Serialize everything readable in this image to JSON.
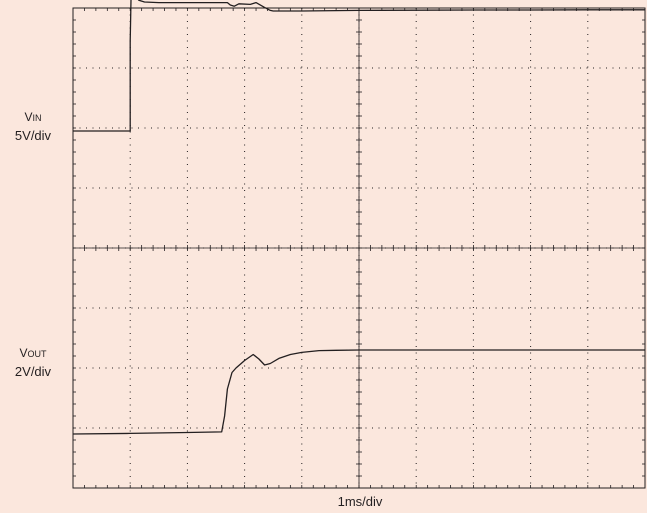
{
  "chart_data": {
    "type": "line",
    "chart_kind": "oscilloscope capture",
    "grid": "10 x 8 divisions, dotted, with minor tick marks on the center axes",
    "x_axis_label": "1ms/div",
    "x_unit": "ms",
    "xlim": [
      0,
      10
    ],
    "channels": [
      {
        "name_prefix": "V",
        "name_subscript": "IN",
        "scale_label": "5V/div",
        "units": "V",
        "zero_division": 2.05,
        "volts_per_division": 5,
        "x": [
          0,
          1.0,
          1.0,
          1.03,
          1.06,
          1.1,
          1.15,
          1.25,
          1.5,
          2,
          2.5,
          2.7,
          2.75,
          2.82,
          2.9,
          3.1,
          3.2,
          3.35,
          3.45,
          3.5,
          3.6,
          4,
          5,
          6,
          7,
          8,
          9,
          10
        ],
        "y": [
          0,
          0,
          7.5,
          14.8,
          12.5,
          11.2,
          10.9,
          10.75,
          10.7,
          10.7,
          10.7,
          10.7,
          10.5,
          10.4,
          10.6,
          10.55,
          10.7,
          10.3,
          10.05,
          10.0,
          10.0,
          10.0,
          10.05,
          10.07,
          10.08,
          10.08,
          10.1,
          10.1
        ]
      },
      {
        "name_prefix": "V",
        "name_subscript": "OUT",
        "scale_label": "2V/div",
        "units": "V",
        "zero_division": 7.1,
        "volts_per_division": 2,
        "x": [
          0,
          1,
          2,
          2.6,
          2.65,
          2.7,
          2.78,
          2.85,
          3.0,
          3.15,
          3.25,
          3.35,
          3.45,
          3.6,
          3.8,
          4.0,
          4.3,
          4.6,
          5,
          6,
          7,
          8,
          9,
          10
        ],
        "y": [
          0,
          0.02,
          0.05,
          0.07,
          0.6,
          1.5,
          2.05,
          2.2,
          2.45,
          2.65,
          2.5,
          2.3,
          2.35,
          2.52,
          2.65,
          2.72,
          2.78,
          2.79,
          2.8,
          2.8,
          2.8,
          2.8,
          2.8,
          2.8
        ]
      }
    ]
  }
}
